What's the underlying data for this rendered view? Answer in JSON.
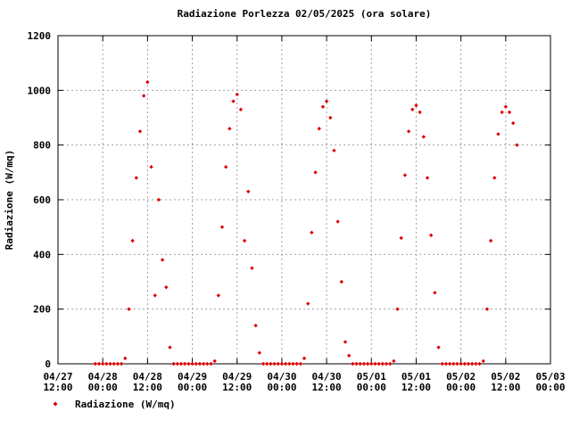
{
  "chart_data": {
    "type": "scatter",
    "title": "Radiazione Porlezza 02/05/2025 (ora solare)",
    "ylabel": "Radiazione (W/mq)",
    "xlim": [
      "04/27 12:00",
      "05/03 00:00"
    ],
    "xticks": [
      "04/27 12:00",
      "04/28 00:00",
      "04/28 12:00",
      "04/29 00:00",
      "04/29 12:00",
      "04/30 00:00",
      "04/30 12:00",
      "05/01 00:00",
      "05/01 12:00",
      "05/02 00:00",
      "05/02 12:00",
      "05/03 00:00"
    ],
    "ylim": [
      0,
      1200
    ],
    "yticks": [
      0,
      200,
      400,
      600,
      800,
      1000,
      1200
    ],
    "grid": true,
    "series": [
      {
        "name": "Radiazione (W/mq)",
        "color": "#e00000",
        "x": [
          "04/27 22:00",
          "04/27 23:00",
          "04/28 00:00",
          "04/28 01:00",
          "04/28 02:00",
          "04/28 03:00",
          "04/28 04:00",
          "04/28 05:00",
          "04/28 06:00",
          "04/28 07:00",
          "04/28 08:00",
          "04/28 09:00",
          "04/28 10:00",
          "04/28 11:00",
          "04/28 12:00",
          "04/28 13:00",
          "04/28 14:00",
          "04/28 15:00",
          "04/28 16:00",
          "04/28 17:00",
          "04/28 18:00",
          "04/28 19:00",
          "04/28 20:00",
          "04/28 21:00",
          "04/28 22:00",
          "04/28 23:00",
          "04/29 00:00",
          "04/29 01:00",
          "04/29 02:00",
          "04/29 03:00",
          "04/29 04:00",
          "04/29 05:00",
          "04/29 06:00",
          "04/29 07:00",
          "04/29 08:00",
          "04/29 09:00",
          "04/29 10:00",
          "04/29 11:00",
          "04/29 12:00",
          "04/29 13:00",
          "04/29 14:00",
          "04/29 15:00",
          "04/29 16:00",
          "04/29 17:00",
          "04/29 18:00",
          "04/29 19:00",
          "04/29 20:00",
          "04/29 21:00",
          "04/29 22:00",
          "04/29 23:00",
          "04/30 00:00",
          "04/30 01:00",
          "04/30 02:00",
          "04/30 03:00",
          "04/30 04:00",
          "04/30 05:00",
          "04/30 06:00",
          "04/30 07:00",
          "04/30 08:00",
          "04/30 09:00",
          "04/30 10:00",
          "04/30 11:00",
          "04/30 12:00",
          "04/30 13:00",
          "04/30 14:00",
          "04/30 15:00",
          "04/30 16:00",
          "04/30 17:00",
          "04/30 18:00",
          "04/30 19:00",
          "04/30 20:00",
          "04/30 21:00",
          "04/30 22:00",
          "04/30 23:00",
          "05/01 00:00",
          "05/01 01:00",
          "05/01 02:00",
          "05/01 03:00",
          "05/01 04:00",
          "05/01 05:00",
          "05/01 06:00",
          "05/01 07:00",
          "05/01 08:00",
          "05/01 09:00",
          "05/01 10:00",
          "05/01 11:00",
          "05/01 12:00",
          "05/01 13:00",
          "05/01 14:00",
          "05/01 15:00",
          "05/01 16:00",
          "05/01 17:00",
          "05/01 18:00",
          "05/01 19:00",
          "05/01 20:00",
          "05/01 21:00",
          "05/01 22:00",
          "05/01 23:00",
          "05/02 00:00",
          "05/02 01:00",
          "05/02 02:00",
          "05/02 03:00",
          "05/02 04:00",
          "05/02 05:00",
          "05/02 06:00",
          "05/02 07:00",
          "05/02 08:00",
          "05/02 09:00",
          "05/02 10:00",
          "05/02 11:00",
          "05/02 12:00",
          "05/02 13:00",
          "05/02 14:00",
          "05/02 15:00"
        ],
        "values": [
          0,
          0,
          0,
          0,
          0,
          0,
          0,
          0,
          20,
          200,
          450,
          680,
          850,
          980,
          1030,
          720,
          250,
          600,
          380,
          280,
          60,
          0,
          0,
          0,
          0,
          0,
          0,
          0,
          0,
          0,
          0,
          0,
          10,
          250,
          500,
          720,
          860,
          960,
          985,
          930,
          450,
          630,
          350,
          140,
          40,
          0,
          0,
          0,
          0,
          0,
          0,
          0,
          0,
          0,
          0,
          0,
          20,
          220,
          480,
          700,
          860,
          940,
          960,
          900,
          780,
          520,
          300,
          80,
          30,
          0,
          0,
          0,
          0,
          0,
          0,
          0,
          0,
          0,
          0,
          0,
          10,
          200,
          460,
          690,
          850,
          930,
          945,
          920,
          830,
          680,
          470,
          260,
          60,
          0,
          0,
          0,
          0,
          0,
          0,
          0,
          0,
          0,
          0,
          0,
          10,
          200,
          450,
          680,
          840,
          920,
          940,
          920,
          880,
          800
        ]
      }
    ]
  }
}
